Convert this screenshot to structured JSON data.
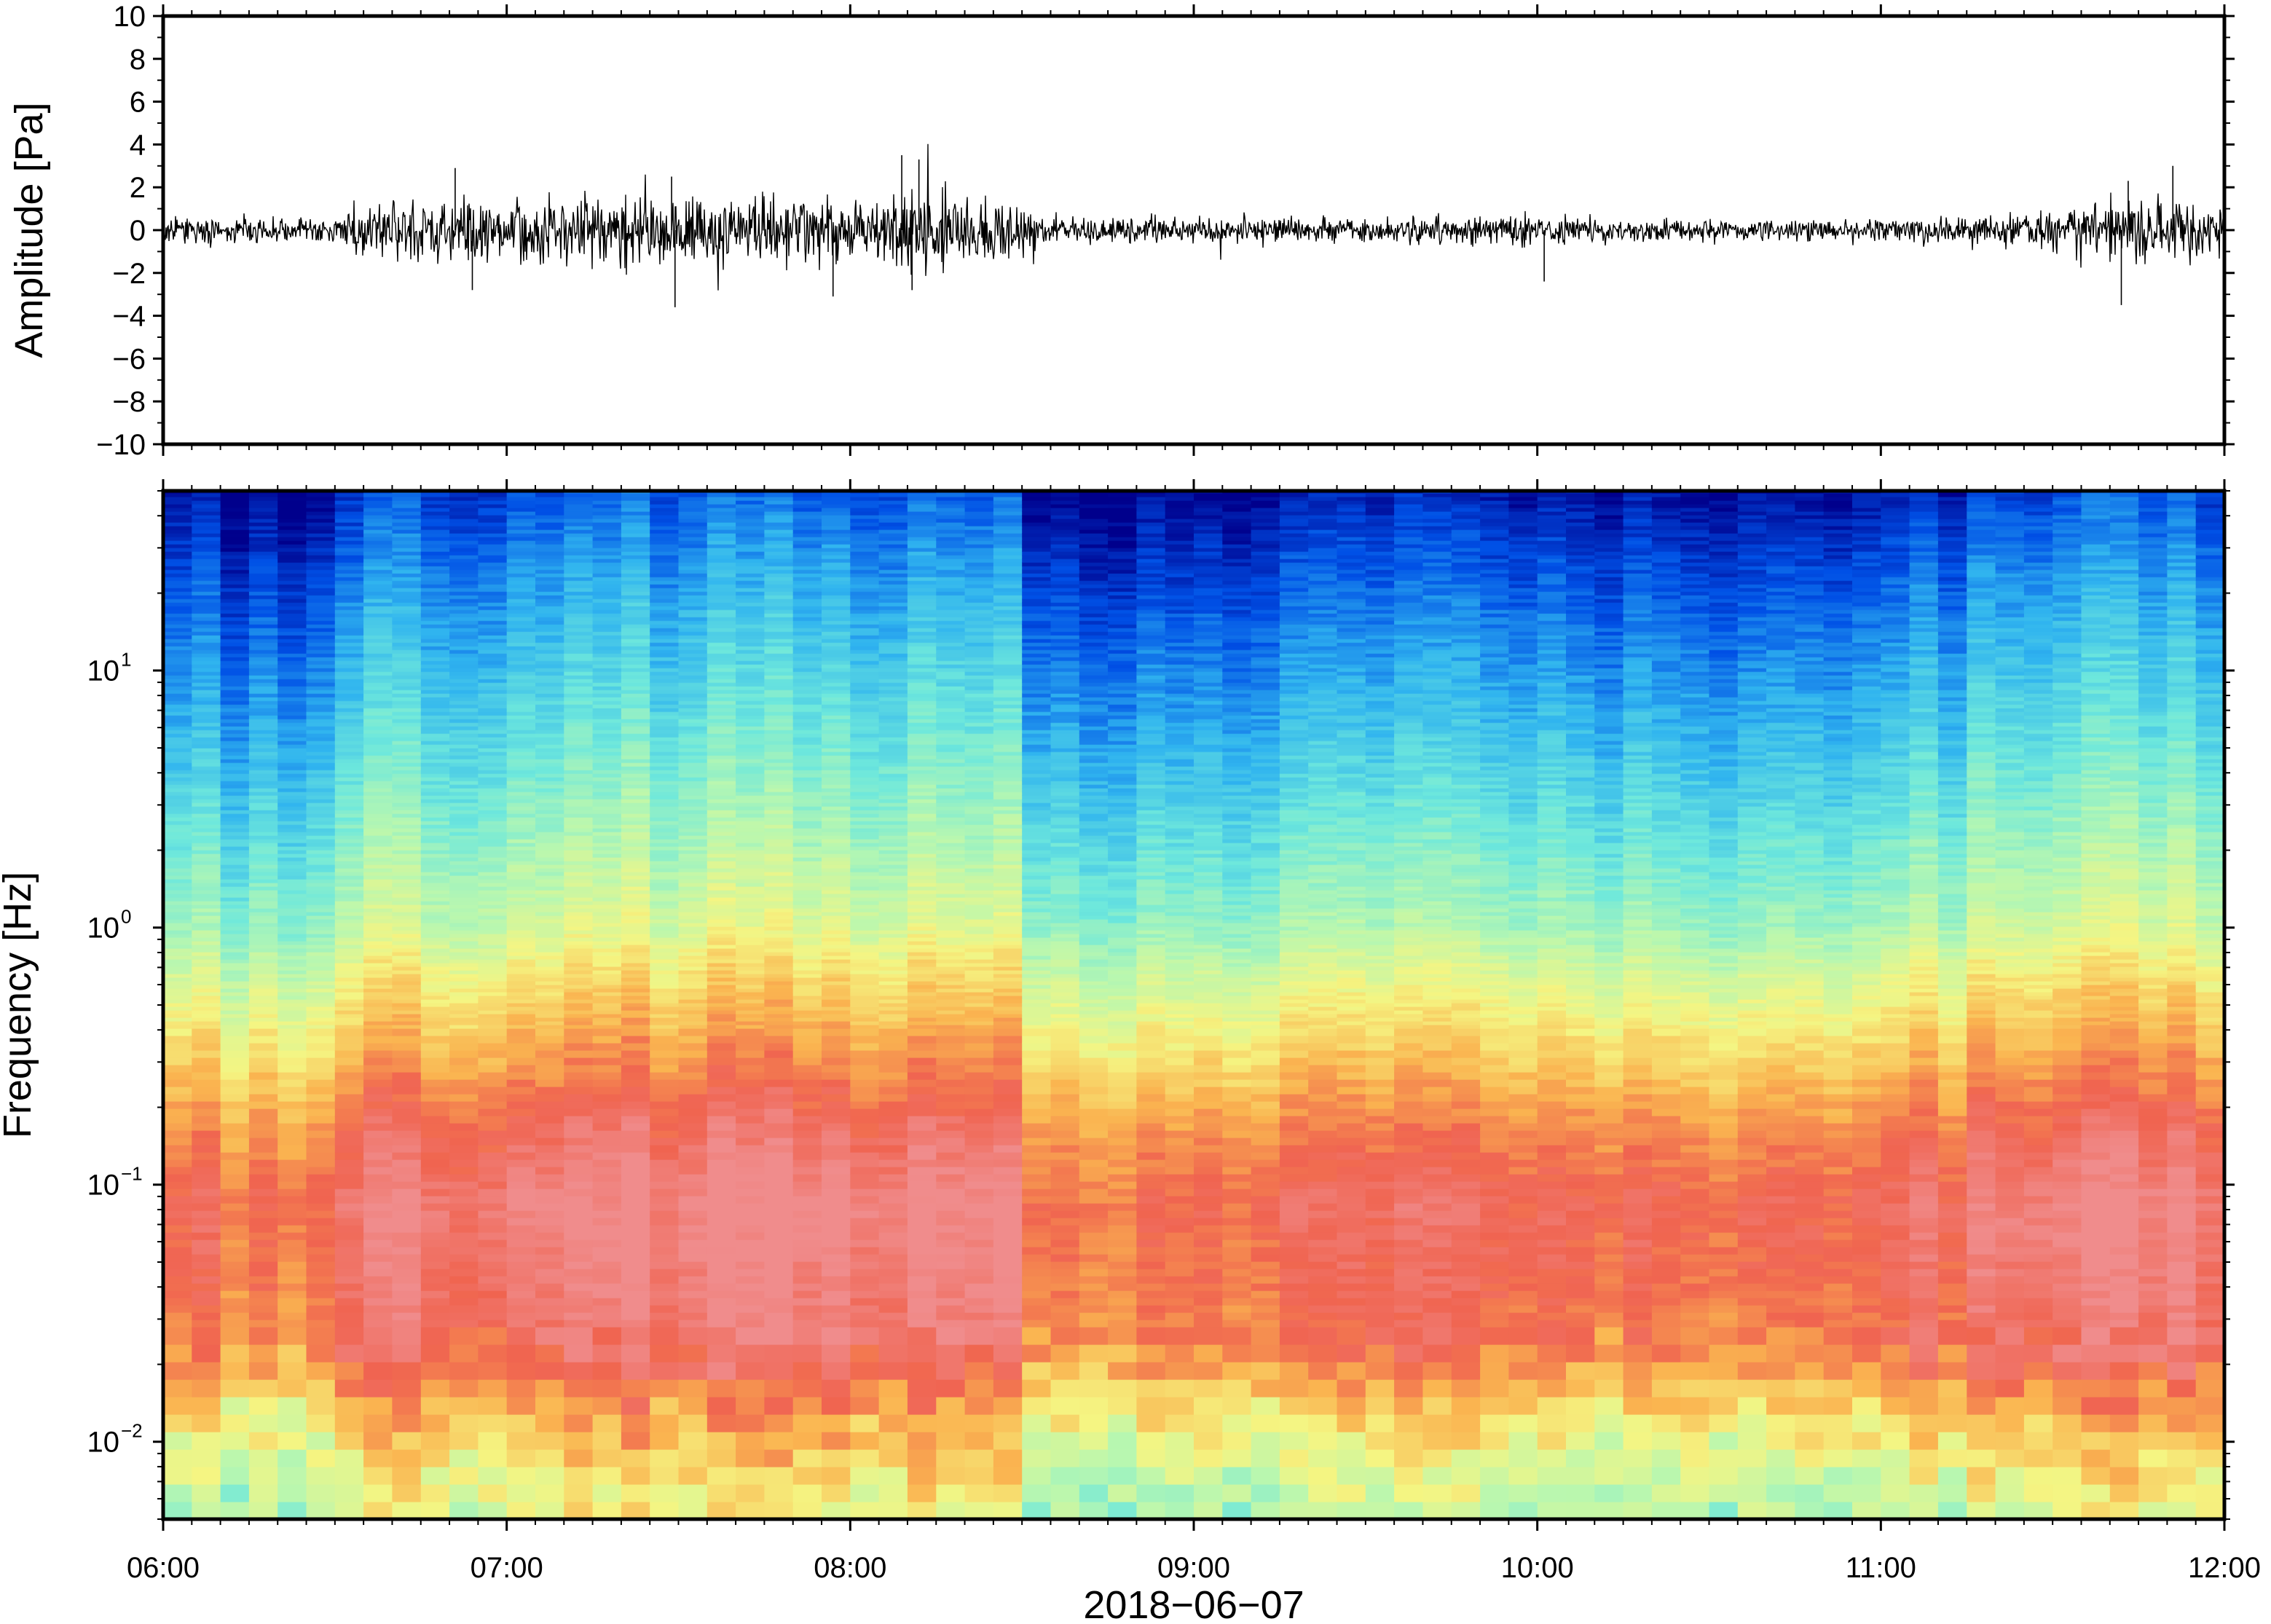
{
  "chart_data": [
    {
      "type": "line",
      "panel": "waveform",
      "ylabel": "Amplitude [Pa]",
      "ylim": [
        -10,
        10
      ],
      "yticks": [
        "10",
        "8",
        "6",
        "4",
        "2",
        "0",
        "−2",
        "−4",
        "−6",
        "−8",
        "−10"
      ],
      "ytick_values": [
        10,
        8,
        6,
        4,
        2,
        0,
        -2,
        -4,
        -6,
        -8,
        -10
      ],
      "x_range": [
        "06:00",
        "12:00"
      ],
      "grid": false,
      "series": [
        {
          "x_hours": [
            6.0,
            6.5,
            6.55,
            7.0,
            7.5,
            8.0,
            8.2,
            8.5,
            8.55,
            9.0,
            9.5,
            10.0,
            10.5,
            11.0,
            11.5,
            11.75,
            12.0
          ],
          "envelope_pa": [
            0.6,
            0.6,
            1.2,
            1.5,
            1.6,
            1.6,
            1.8,
            1.4,
            0.6,
            0.6,
            0.6,
            0.7,
            0.5,
            0.5,
            0.9,
            1.5,
            1.4
          ],
          "peaks_pa": [
            {
              "x": 6.85,
              "y": 2.9
            },
            {
              "x": 6.9,
              "y": -2.8
            },
            {
              "x": 7.48,
              "y": 2.5
            },
            {
              "x": 7.49,
              "y": -3.6
            },
            {
              "x": 7.95,
              "y": -3.1
            },
            {
              "x": 8.15,
              "y": 3.5
            },
            {
              "x": 8.2,
              "y": 3.3
            },
            {
              "x": 8.18,
              "y": -2.8
            },
            {
              "x": 10.02,
              "y": -2.4
            },
            {
              "x": 11.7,
              "y": -3.5
            },
            {
              "x": 11.72,
              "y": 2.3
            },
            {
              "x": 11.85,
              "y": 3.0
            }
          ]
        }
      ]
    },
    {
      "type": "heatmap",
      "panel": "spectrogram",
      "ylabel": "Frequency [Hz]",
      "xlabel": "2018−06−07",
      "yscale": "log",
      "ylim": [
        0.005,
        50
      ],
      "yticks": [
        {
          "base": "10",
          "exp": "1",
          "value": 10
        },
        {
          "base": "10",
          "exp": "0",
          "value": 1
        },
        {
          "base": "10",
          "exp": "−1",
          "value": 0.1
        },
        {
          "base": "10",
          "exp": "−2",
          "value": 0.01
        }
      ],
      "xticks": [
        "06:00",
        "07:00",
        "08:00",
        "09:00",
        "10:00",
        "11:00",
        "12:00"
      ],
      "xtick_hours": [
        6,
        7,
        8,
        9,
        10,
        11,
        12
      ],
      "colormap": [
        "#00008c",
        "#0050e6",
        "#30b4ef",
        "#6ee8dc",
        "#b8f7b0",
        "#f5f582",
        "#fab450",
        "#f06450",
        "#f08c8c"
      ],
      "intensity_profile": {
        "log10_freq": [
          -2.3,
          -2.1,
          -1.9,
          -1.7,
          -1.4,
          -1.1,
          -0.8,
          -0.5,
          -0.2,
          0.0,
          0.3,
          0.6,
          0.9,
          1.2,
          1.5,
          1.7
        ],
        "level": [
          0.55,
          0.62,
          0.72,
          0.86,
          0.9,
          0.93,
          0.85,
          0.72,
          0.6,
          0.5,
          0.42,
          0.34,
          0.27,
          0.2,
          0.12,
          0.06
        ]
      },
      "time_activity": {
        "x_hours": [
          6.0,
          6.2,
          6.45,
          6.55,
          7.0,
          7.5,
          8.0,
          8.5,
          8.55,
          9.0,
          9.5,
          10.0,
          10.5,
          11.0,
          11.3,
          11.7,
          12.0
        ],
        "offset": [
          0.0,
          -0.08,
          -0.08,
          0.03,
          0.06,
          0.08,
          0.08,
          0.07,
          -0.06,
          -0.05,
          -0.04,
          -0.02,
          -0.07,
          -0.04,
          0.02,
          0.06,
          0.05
        ]
      },
      "grid": false
    }
  ]
}
